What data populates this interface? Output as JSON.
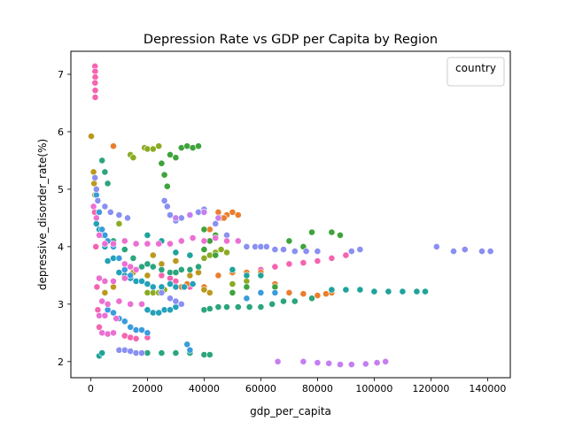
{
  "chart_data": {
    "type": "scatter",
    "title": "Depression Rate vs GDP per Capita by Region",
    "xlabel": "gdp_per_capita",
    "ylabel": "depressive_disorder_rate(%)",
    "xlim": [
      -7000,
      148000
    ],
    "ylim": [
      1.72,
      7.4
    ],
    "xticks": [
      0,
      20000,
      40000,
      60000,
      80000,
      100000,
      120000,
      140000
    ],
    "yticks": [
      2,
      3,
      4,
      5,
      6,
      7
    ],
    "grid": false,
    "legend": {
      "title": "country",
      "placement": "top-right",
      "entries": []
    },
    "palette": [
      "#f564b0",
      "#e97e2e",
      "#ba9a1e",
      "#8bab22",
      "#3ea33b",
      "#2ca57c",
      "#1fa39b",
      "#22a1b9",
      "#3a9cdc",
      "#8a8ff2",
      "#c57ef0",
      "#ec6fd2"
    ],
    "series": [
      {
        "color": "#f564b0",
        "points": [
          [
            1500,
            7.14
          ],
          [
            1550,
            7.05
          ],
          [
            1600,
            6.95
          ],
          [
            1520,
            6.85
          ],
          [
            1580,
            6.72
          ],
          [
            1600,
            6.6
          ],
          [
            1400,
            4.6
          ],
          [
            1800,
            4.0
          ],
          [
            2200,
            3.3
          ],
          [
            2500,
            2.9
          ],
          [
            3000,
            2.6
          ],
          [
            25000,
            3.5
          ],
          [
            28000,
            3.45
          ],
          [
            30000,
            3.4
          ],
          [
            35000,
            3.3
          ],
          [
            55000,
            3.55
          ],
          [
            60000,
            3.6
          ],
          [
            65000,
            3.65
          ],
          [
            70000,
            3.7
          ],
          [
            75000,
            3.72
          ],
          [
            80000,
            3.75
          ],
          [
            85000,
            3.8
          ],
          [
            90000,
            3.85
          ],
          [
            12000,
            2.45
          ],
          [
            14000,
            2.42
          ],
          [
            16000,
            2.4
          ],
          [
            20000,
            2.42
          ]
        ]
      },
      {
        "color": "#e97e2e",
        "points": [
          [
            8000,
            5.75
          ],
          [
            42000,
            4.3
          ],
          [
            44000,
            4.4
          ],
          [
            46000,
            4.5
          ],
          [
            48000,
            4.55
          ],
          [
            50000,
            4.6
          ],
          [
            52000,
            4.55
          ],
          [
            45000,
            4.6
          ],
          [
            47000,
            4.5
          ],
          [
            30000,
            3.3
          ],
          [
            32000,
            3.3
          ],
          [
            34000,
            3.35
          ],
          [
            40000,
            3.3
          ],
          [
            45000,
            3.5
          ],
          [
            50000,
            3.55
          ],
          [
            55000,
            3.55
          ],
          [
            60000,
            3.55
          ],
          [
            65000,
            3.35
          ],
          [
            70000,
            3.2
          ],
          [
            75000,
            3.18
          ],
          [
            80000,
            3.15
          ],
          [
            83000,
            3.18
          ],
          [
            85000,
            3.2
          ]
        ]
      },
      {
        "color": "#ba9a1e",
        "points": [
          [
            200,
            5.92
          ],
          [
            1000,
            5.3
          ],
          [
            1200,
            5.1
          ],
          [
            1500,
            4.9
          ],
          [
            5000,
            3.2
          ],
          [
            8000,
            3.3
          ],
          [
            12000,
            3.6
          ],
          [
            15000,
            3.55
          ],
          [
            20000,
            3.5
          ],
          [
            22000,
            3.85
          ],
          [
            25000,
            3.7
          ],
          [
            30000,
            3.75
          ],
          [
            35000,
            3.5
          ],
          [
            38000,
            3.55
          ],
          [
            40000,
            3.25
          ],
          [
            42000,
            3.2
          ]
        ]
      },
      {
        "color": "#8bab22",
        "points": [
          [
            19000,
            5.72
          ],
          [
            20000,
            5.7
          ],
          [
            22000,
            5.7
          ],
          [
            24000,
            5.75
          ],
          [
            14000,
            5.6
          ],
          [
            15000,
            5.55
          ],
          [
            10000,
            4.4
          ],
          [
            12000,
            4.1
          ],
          [
            20000,
            3.2
          ],
          [
            22000,
            3.2
          ],
          [
            24000,
            3.2
          ],
          [
            26000,
            3.25
          ],
          [
            40000,
            3.8
          ],
          [
            42000,
            3.85
          ],
          [
            44000,
            3.9
          ],
          [
            46000,
            3.95
          ],
          [
            48000,
            3.9
          ],
          [
            50000,
            3.35
          ],
          [
            55000,
            3.4
          ]
        ]
      },
      {
        "color": "#3ea33b",
        "points": [
          [
            25000,
            5.45
          ],
          [
            26000,
            5.25
          ],
          [
            27000,
            5.05
          ],
          [
            28000,
            5.6
          ],
          [
            30000,
            5.55
          ],
          [
            32000,
            5.72
          ],
          [
            34000,
            5.75
          ],
          [
            36000,
            5.72
          ],
          [
            38000,
            5.75
          ],
          [
            40000,
            4.3
          ],
          [
            42000,
            4.1
          ],
          [
            44000,
            4.2
          ],
          [
            40000,
            3.95
          ],
          [
            44000,
            3.85
          ],
          [
            50000,
            3.2
          ],
          [
            55000,
            3.3
          ],
          [
            60000,
            3.2
          ],
          [
            65000,
            3.3
          ],
          [
            70000,
            4.1
          ],
          [
            75000,
            4.0
          ],
          [
            78000,
            4.25
          ],
          [
            85000,
            4.25
          ],
          [
            88000,
            4.2
          ],
          [
            55000,
            4.0
          ]
        ]
      },
      {
        "color": "#2ca57c",
        "points": [
          [
            4000,
            5.5
          ],
          [
            5000,
            5.3
          ],
          [
            6000,
            5.1
          ],
          [
            8000,
            4.1
          ],
          [
            10000,
            3.8
          ],
          [
            12000,
            3.95
          ],
          [
            15000,
            3.8
          ],
          [
            18000,
            3.65
          ],
          [
            20000,
            3.7
          ],
          [
            22000,
            3.65
          ],
          [
            25000,
            3.6
          ],
          [
            28000,
            3.55
          ],
          [
            30000,
            3.55
          ],
          [
            32000,
            3.6
          ],
          [
            35000,
            3.6
          ],
          [
            38000,
            3.65
          ],
          [
            40000,
            2.9
          ],
          [
            42000,
            2.92
          ],
          [
            45000,
            2.95
          ],
          [
            48000,
            2.95
          ],
          [
            52000,
            2.95
          ],
          [
            56000,
            2.95
          ],
          [
            60000,
            2.95
          ],
          [
            64000,
            3.0
          ],
          [
            68000,
            3.05
          ],
          [
            72000,
            3.05
          ],
          [
            78000,
            3.1
          ],
          [
            20000,
            2.15
          ],
          [
            25000,
            2.15
          ],
          [
            30000,
            2.15
          ],
          [
            35000,
            2.15
          ],
          [
            40000,
            2.12
          ],
          [
            42000,
            2.12
          ]
        ]
      },
      {
        "color": "#1fa39b",
        "points": [
          [
            3000,
            2.1
          ],
          [
            4000,
            2.15
          ],
          [
            20000,
            4.2
          ],
          [
            25000,
            4.1
          ],
          [
            30000,
            3.9
          ],
          [
            35000,
            3.85
          ],
          [
            85000,
            3.25
          ],
          [
            90000,
            3.25
          ],
          [
            95000,
            3.25
          ],
          [
            100000,
            3.22
          ],
          [
            105000,
            3.22
          ],
          [
            110000,
            3.22
          ],
          [
            115000,
            3.22
          ],
          [
            118000,
            3.22
          ],
          [
            50000,
            3.6
          ],
          [
            55000,
            3.5
          ],
          [
            60000,
            3.5
          ]
        ]
      },
      {
        "color": "#22a1b9",
        "points": [
          [
            2000,
            4.4
          ],
          [
            3000,
            4.3
          ],
          [
            4000,
            4.2
          ],
          [
            5000,
            4.0
          ],
          [
            6000,
            3.75
          ],
          [
            8000,
            3.8
          ],
          [
            10000,
            3.55
          ],
          [
            12000,
            3.5
          ],
          [
            14000,
            3.45
          ],
          [
            16000,
            3.4
          ],
          [
            18000,
            3.4
          ],
          [
            20000,
            3.35
          ],
          [
            22000,
            3.3
          ],
          [
            25000,
            3.3
          ],
          [
            28000,
            3.35
          ],
          [
            30000,
            3.3
          ],
          [
            33000,
            3.3
          ],
          [
            36000,
            3.35
          ],
          [
            20000,
            2.9
          ],
          [
            22000,
            2.85
          ],
          [
            24000,
            2.85
          ],
          [
            26000,
            2.9
          ],
          [
            28000,
            2.9
          ],
          [
            30000,
            2.95
          ],
          [
            32000,
            3.0
          ]
        ]
      },
      {
        "color": "#3a9cdc",
        "points": [
          [
            2000,
            4.9
          ],
          [
            2500,
            4.8
          ],
          [
            3000,
            4.6
          ],
          [
            4000,
            4.3
          ],
          [
            5000,
            4.2
          ],
          [
            6000,
            4.1
          ],
          [
            8000,
            4.0
          ],
          [
            10000,
            3.8
          ],
          [
            12000,
            3.6
          ],
          [
            14000,
            3.5
          ],
          [
            6000,
            2.9
          ],
          [
            8000,
            2.85
          ],
          [
            10000,
            2.75
          ],
          [
            12000,
            2.7
          ],
          [
            14000,
            2.6
          ],
          [
            16000,
            2.55
          ],
          [
            18000,
            2.55
          ],
          [
            20000,
            2.5
          ],
          [
            55000,
            3.1
          ],
          [
            60000,
            3.2
          ],
          [
            65000,
            3.2
          ],
          [
            34000,
            2.3
          ],
          [
            35000,
            2.2
          ]
        ]
      },
      {
        "color": "#8a8ff2",
        "points": [
          [
            1500,
            5.2
          ],
          [
            2000,
            5.0
          ],
          [
            2500,
            4.8
          ],
          [
            5000,
            4.7
          ],
          [
            7000,
            4.6
          ],
          [
            10000,
            4.55
          ],
          [
            13000,
            4.5
          ],
          [
            26000,
            4.8
          ],
          [
            27000,
            4.7
          ],
          [
            28000,
            4.55
          ],
          [
            30000,
            4.45
          ],
          [
            32000,
            4.5
          ],
          [
            35000,
            4.55
          ],
          [
            38000,
            4.6
          ],
          [
            40000,
            4.65
          ],
          [
            44000,
            4.4
          ],
          [
            48000,
            4.2
          ],
          [
            52000,
            4.1
          ],
          [
            55000,
            4.0
          ],
          [
            58000,
            4.0
          ],
          [
            60000,
            4.0
          ],
          [
            62000,
            4.0
          ],
          [
            65000,
            3.95
          ],
          [
            68000,
            3.95
          ],
          [
            72000,
            3.92
          ],
          [
            76000,
            3.92
          ],
          [
            80000,
            3.92
          ],
          [
            92000,
            3.92
          ],
          [
            95000,
            3.95
          ],
          [
            122000,
            4.0
          ],
          [
            128000,
            3.92
          ],
          [
            132000,
            3.95
          ],
          [
            138000,
            3.92
          ],
          [
            141000,
            3.92
          ],
          [
            10000,
            2.2
          ],
          [
            12000,
            2.2
          ],
          [
            14000,
            2.18
          ],
          [
            16000,
            2.15
          ],
          [
            18000,
            2.15
          ],
          [
            25000,
            3.2
          ],
          [
            28000,
            3.1
          ],
          [
            30000,
            3.05
          ],
          [
            32000,
            3.0
          ]
        ]
      },
      {
        "color": "#c57ef0",
        "points": [
          [
            66000,
            2.0
          ],
          [
            75000,
            2.0
          ],
          [
            80000,
            1.98
          ],
          [
            84000,
            1.97
          ],
          [
            88000,
            1.95
          ],
          [
            92000,
            1.95
          ],
          [
            97000,
            1.96
          ],
          [
            101000,
            1.98
          ],
          [
            104000,
            2.0
          ],
          [
            30000,
            4.5
          ],
          [
            35000,
            4.55
          ],
          [
            40000,
            4.6
          ],
          [
            45000,
            4.5
          ]
        ]
      },
      {
        "color": "#ec6fd2",
        "points": [
          [
            1000,
            4.7
          ],
          [
            2000,
            4.5
          ],
          [
            3000,
            4.2
          ],
          [
            5000,
            4.05
          ],
          [
            8000,
            4.05
          ],
          [
            12000,
            4.1
          ],
          [
            16000,
            4.05
          ],
          [
            20000,
            4.05
          ],
          [
            24000,
            4.05
          ],
          [
            28000,
            4.05
          ],
          [
            32000,
            4.1
          ],
          [
            36000,
            4.15
          ],
          [
            40000,
            4.1
          ],
          [
            44000,
            4.15
          ],
          [
            48000,
            4.1
          ],
          [
            52000,
            4.1
          ],
          [
            3000,
            3.45
          ],
          [
            5000,
            3.4
          ],
          [
            8000,
            3.4
          ],
          [
            12000,
            3.45
          ],
          [
            4000,
            3.05
          ],
          [
            6000,
            3.0
          ],
          [
            10000,
            3.05
          ],
          [
            14000,
            3.0
          ],
          [
            18000,
            3.0
          ],
          [
            3000,
            2.8
          ],
          [
            5000,
            2.8
          ],
          [
            9000,
            2.75
          ],
          [
            4000,
            2.5
          ],
          [
            6000,
            2.48
          ],
          [
            8000,
            2.5
          ],
          [
            12000,
            3.7
          ],
          [
            14000,
            3.65
          ],
          [
            16000,
            3.6
          ]
        ]
      }
    ]
  }
}
